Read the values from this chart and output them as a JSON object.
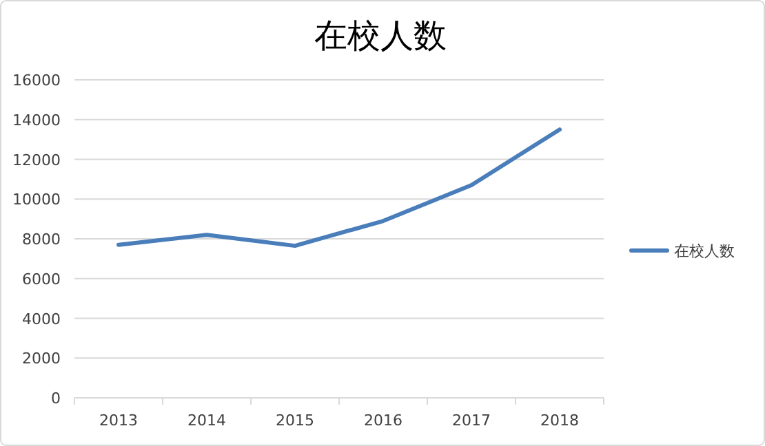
{
  "chart_data": {
    "type": "line",
    "title": "在校人数",
    "categories": [
      "2013",
      "2014",
      "2015",
      "2016",
      "2017",
      "2018"
    ],
    "series": [
      {
        "name": "在校人数",
        "color": "#4a7ebb",
        "values": [
          7700,
          8200,
          7650,
          8900,
          10700,
          13500
        ]
      }
    ],
    "ylim": [
      0,
      16000
    ],
    "yticks": [
      0,
      2000,
      4000,
      6000,
      8000,
      10000,
      12000,
      14000,
      16000
    ],
    "grid": "y",
    "legend": "right",
    "marker": "none",
    "line_style": "solid"
  }
}
